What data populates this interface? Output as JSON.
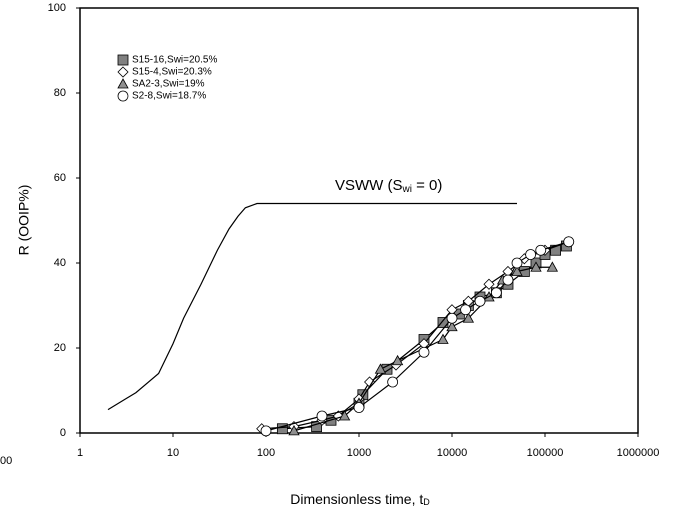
{
  "chart_data": {
    "type": "scatter-line",
    "xscale": "log",
    "xlabel": {
      "text": "Dimensionless time, t",
      "sub": "D"
    },
    "ylabel": "R  (OOIP%)",
    "xlim": [
      1,
      1000000
    ],
    "ylim": [
      0,
      100
    ],
    "xticks": [
      1,
      10,
      100,
      1000,
      10000,
      100000,
      1000000
    ],
    "yticks": [
      0,
      20,
      40,
      60,
      80,
      100
    ],
    "legend": "top-left",
    "stray_label": "00",
    "annotation": {
      "text": "VSWW (S",
      "sub": "wi",
      "tail": " = 0)"
    },
    "reference": {
      "x": [
        2,
        4,
        7,
        10,
        13,
        20,
        30,
        40,
        50,
        60,
        80,
        100,
        1000,
        50000
      ],
      "values": [
        5.5,
        9.5,
        14,
        21,
        27,
        35,
        43,
        48,
        51,
        53,
        54,
        54,
        54,
        54
      ],
      "color": "#000000"
    },
    "series": [
      {
        "name": "S15-16,Swi=20.5%",
        "marker": "square",
        "color": "#808080",
        "x": [
          150,
          350,
          500,
          1000,
          1100,
          2000,
          5000,
          8000,
          12000,
          15000,
          20000,
          30000,
          40000,
          60000,
          80000,
          100000,
          130000,
          170000
        ],
        "values": [
          1,
          1.5,
          3,
          7,
          9,
          15,
          22,
          26,
          28,
          30,
          32,
          33,
          35,
          38,
          40,
          42,
          43,
          44
        ]
      },
      {
        "name": "S15-4,Swi=20.3%",
        "marker": "diamond",
        "color": "#ffffff",
        "x": [
          90,
          200,
          400,
          600,
          1000,
          1300,
          2500,
          5000,
          10000,
          15000,
          25000,
          40000,
          60000,
          100000,
          180000
        ],
        "values": [
          1,
          1.5,
          3,
          4,
          8,
          12,
          16,
          21,
          29,
          31,
          35,
          38,
          41,
          43,
          45
        ]
      },
      {
        "name": "SA2-3,Swi=19%",
        "marker": "triangle",
        "color": "#909090",
        "x": [
          200,
          700,
          1000,
          1700,
          2600,
          8000,
          10000,
          15000,
          25000,
          35000,
          50000,
          80000,
          120000
        ],
        "values": [
          0.5,
          4,
          7,
          15,
          17,
          22,
          25,
          27,
          32,
          36,
          38,
          39,
          39
        ]
      },
      {
        "name": "S2-8,Swi=18.7%",
        "marker": "circle",
        "color": "#ffffff",
        "x": [
          100,
          400,
          1000,
          2300,
          5000,
          10000,
          14000,
          20000,
          30000,
          40000,
          50000,
          70000,
          90000,
          180000
        ],
        "values": [
          0.5,
          4,
          6,
          12,
          19,
          27,
          29,
          31,
          33,
          36,
          40,
          42,
          43,
          45
        ]
      }
    ]
  }
}
